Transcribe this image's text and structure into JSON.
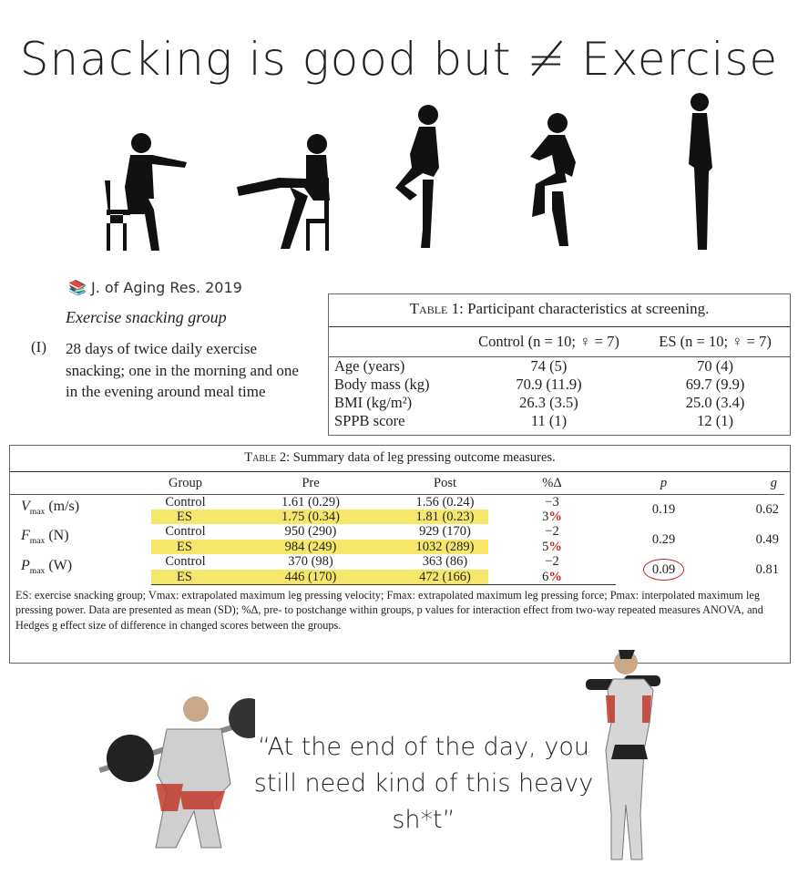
{
  "title": "Snacking is good but ≠ Exercise",
  "figures": [
    "seated-arm-reach",
    "seated-leg-extension",
    "standing-knee-raise",
    "marching-knee-raise",
    "standing-upright"
  ],
  "citation": {
    "icon": "books-icon",
    "text": "J. of Aging Res. 2019"
  },
  "group_label": "Exercise snacking group",
  "item": {
    "number": "(I)",
    "text": "28 days of twice daily exercise snacking; one in the morning and one in the evening around meal time"
  },
  "table1": {
    "caption_prefix": "Table 1:",
    "caption": "Participant characteristics at screening.",
    "headers": [
      "",
      "Control (n = 10; ♀ = 7)",
      "ES (n = 10; ♀ = 7)"
    ],
    "rows": [
      [
        "Age (years)",
        "74 (5)",
        "70 (4)"
      ],
      [
        "Body mass (kg)",
        "70.9 (11.9)",
        "69.7 (9.9)"
      ],
      [
        "BMI (kg/m²)",
        "26.3 (3.5)",
        "25.0 (3.4)"
      ],
      [
        "SPPB score",
        "11 (1)",
        "12 (1)"
      ]
    ]
  },
  "table2": {
    "caption_prefix": "Table 2:",
    "caption": "Summary data of leg pressing outcome measures.",
    "headers": [
      "",
      "Group",
      "Pre",
      "Post",
      "%Δ",
      "p",
      "g"
    ],
    "measures": [
      {
        "label": "V",
        "sub": "max",
        "unit": "(m/s)",
        "p": "0.19",
        "g": "0.62",
        "rows": [
          [
            "Control",
            "1.61 (0.29)",
            "1.56 (0.24)",
            "−3"
          ],
          [
            "ES",
            "1.75 (0.34)",
            "1.81 (0.23)",
            "3"
          ]
        ]
      },
      {
        "label": "F",
        "sub": "max",
        "unit": "(N)",
        "p": "0.29",
        "g": "0.49",
        "rows": [
          [
            "Control",
            "950 (290)",
            "929 (170)",
            "−2"
          ],
          [
            "ES",
            "984 (249)",
            "1032 (289)",
            "5"
          ]
        ]
      },
      {
        "label": "P",
        "sub": "max",
        "unit": "(W)",
        "p": "0.09",
        "g": "0.81",
        "rows": [
          [
            "Control",
            "370 (98)",
            "363 (86)",
            "−2"
          ],
          [
            "ES",
            "446 (170)",
            "472 (166)",
            "6"
          ]
        ]
      }
    ],
    "pct_mark": "%",
    "highlight_color": "#f6e76a",
    "annotation_color": "#c0262a",
    "footnote": "ES: exercise snacking group; Vmax: extrapolated maximum leg pressing velocity; Fmax: extrapolated maximum leg pressing force; Pmax: interpolated maximum leg pressing power. Data are presented as mean (SD); %Δ, pre- to postchange within groups, p values for interaction effect from two-way repeated measures ANOVA, and Hedges g effect size of difference in changed scores between the groups."
  },
  "quote": "“At the end of the day, you still need kind of this heavy sh*t”"
}
